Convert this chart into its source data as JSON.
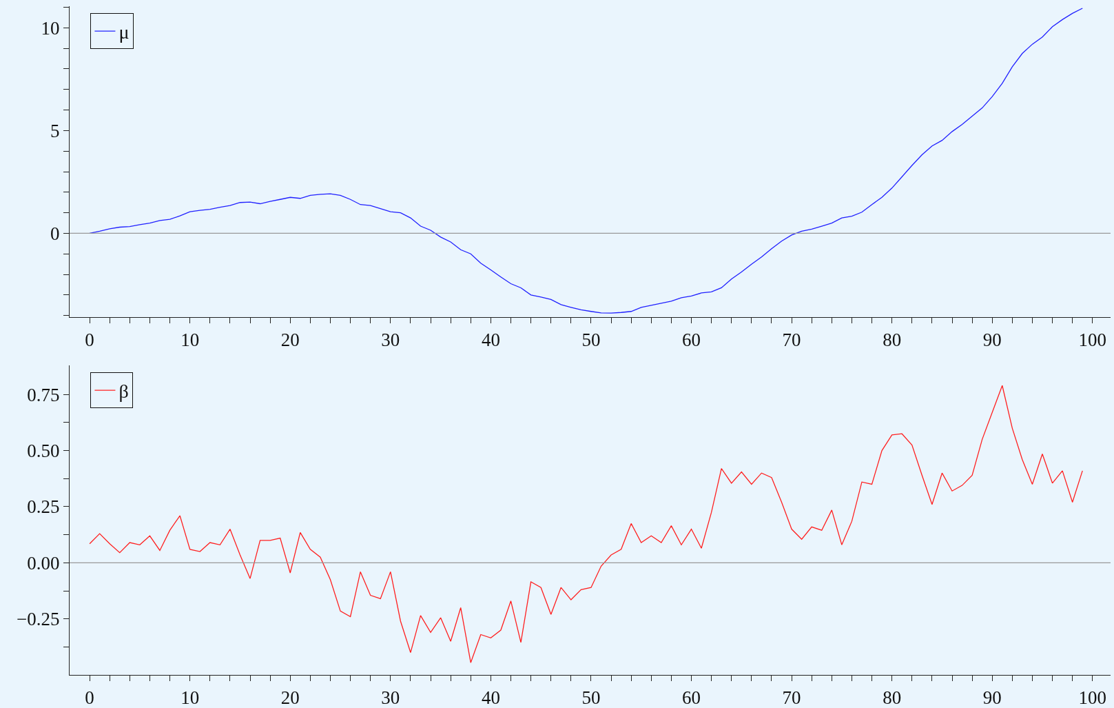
{
  "chart_data": [
    {
      "type": "line",
      "x": [
        0,
        1,
        2,
        3,
        4,
        5,
        6,
        7,
        8,
        9,
        10,
        11,
        12,
        13,
        14,
        15,
        16,
        17,
        18,
        19,
        20,
        21,
        22,
        23,
        24,
        25,
        26,
        27,
        28,
        29,
        30,
        31,
        32,
        33,
        34,
        35,
        36,
        37,
        38,
        39,
        40,
        41,
        42,
        43,
        44,
        45,
        46,
        47,
        48,
        49,
        50,
        51,
        52,
        53,
        54,
        55,
        56,
        57,
        58,
        59,
        60,
        61,
        62,
        63,
        64,
        65,
        66,
        67,
        68,
        69,
        70,
        71,
        72,
        73,
        74,
        75,
        76,
        77,
        78,
        79,
        80,
        81,
        82,
        83,
        84,
        85,
        86,
        87,
        88,
        89,
        90,
        91,
        92,
        93,
        94,
        95,
        96,
        97,
        98,
        99
      ],
      "series": [
        {
          "name": "μ",
          "color": "#2020ff",
          "values": [
            0,
            0.1,
            0.22,
            0.3,
            0.33,
            0.42,
            0.5,
            0.62,
            0.68,
            0.85,
            1.05,
            1.12,
            1.17,
            1.27,
            1.35,
            1.5,
            1.52,
            1.44,
            1.55,
            1.65,
            1.75,
            1.7,
            1.85,
            1.9,
            1.92,
            1.85,
            1.65,
            1.4,
            1.35,
            1.2,
            1.05,
            1.0,
            0.75,
            0.35,
            0.15,
            -0.18,
            -0.42,
            -0.8,
            -1.0,
            -1.45,
            -1.78,
            -2.12,
            -2.45,
            -2.65,
            -3.0,
            -3.1,
            -3.22,
            -3.47,
            -3.6,
            -3.72,
            -3.8,
            -3.87,
            -3.88,
            -3.85,
            -3.8,
            -3.6,
            -3.5,
            -3.4,
            -3.3,
            -3.13,
            -3.05,
            -2.9,
            -2.85,
            -2.65,
            -2.22,
            -1.88,
            -1.5,
            -1.15,
            -0.75,
            -0.38,
            -0.08,
            0.1,
            0.2,
            0.35,
            0.5,
            0.75,
            0.83,
            1.03,
            1.4,
            1.75,
            2.2,
            2.75,
            3.3,
            3.82,
            4.25,
            4.52,
            4.95,
            5.3,
            5.7,
            6.1,
            6.65,
            7.3,
            8.1,
            8.75,
            9.2,
            9.55,
            10.05,
            10.4,
            10.7,
            10.95
          ]
        }
      ],
      "xlim": [
        -2,
        101.8
      ],
      "ylim": [
        -4.08,
        11.05
      ],
      "xticks": [
        0,
        {
          "value": 2,
          "label": null
        },
        {
          "value": 4,
          "label": null
        },
        {
          "value": 6,
          "label": null
        },
        {
          "value": 8,
          "label": null
        },
        10,
        {
          "value": 12,
          "label": null
        },
        {
          "value": 14,
          "label": null
        },
        {
          "value": 16,
          "label": null
        },
        {
          "value": 18,
          "label": null
        },
        20,
        {
          "value": 22,
          "label": null
        },
        {
          "value": 24,
          "label": null
        },
        {
          "value": 26,
          "label": null
        },
        {
          "value": 28,
          "label": null
        },
        30,
        {
          "value": 32,
          "label": null
        },
        {
          "value": 34,
          "label": null
        },
        {
          "value": 36,
          "label": null
        },
        {
          "value": 38,
          "label": null
        },
        40,
        {
          "value": 42,
          "label": null
        },
        {
          "value": 44,
          "label": null
        },
        {
          "value": 46,
          "label": null
        },
        {
          "value": 48,
          "label": null
        },
        50,
        {
          "value": 52,
          "label": null
        },
        {
          "value": 54,
          "label": null
        },
        {
          "value": 56,
          "label": null
        },
        {
          "value": 58,
          "label": null
        },
        60,
        {
          "value": 62,
          "label": null
        },
        {
          "value": 64,
          "label": null
        },
        {
          "value": 66,
          "label": null
        },
        {
          "value": 68,
          "label": null
        },
        70,
        {
          "value": 72,
          "label": null
        },
        {
          "value": 74,
          "label": null
        },
        {
          "value": 76,
          "label": null
        },
        {
          "value": 78,
          "label": null
        },
        80,
        {
          "value": 82,
          "label": null
        },
        {
          "value": 84,
          "label": null
        },
        {
          "value": 86,
          "label": null
        },
        {
          "value": 88,
          "label": null
        },
        90,
        {
          "value": 92,
          "label": null
        },
        {
          "value": 94,
          "label": null
        },
        {
          "value": 96,
          "label": null
        },
        {
          "value": 98,
          "label": null
        },
        100
      ],
      "yticks": [
        {
          "value": -4,
          "label": null
        },
        {
          "value": -3,
          "label": null
        },
        {
          "value": -2,
          "label": null
        },
        {
          "value": -1,
          "label": null
        },
        0,
        {
          "value": 1,
          "label": null
        },
        {
          "value": 2,
          "label": null
        },
        {
          "value": 3,
          "label": null
        },
        {
          "value": 4,
          "label": null
        },
        5,
        {
          "value": 6,
          "label": null
        },
        {
          "value": 7,
          "label": null
        },
        {
          "value": 8,
          "label": null
        },
        {
          "value": 9,
          "label": null
        },
        10,
        {
          "value": 11,
          "label": null
        }
      ],
      "ref_lines": [
        {
          "axis": "y",
          "value": 0,
          "color": "#999999"
        }
      ],
      "legend": "top left",
      "grid": false,
      "marker": "none",
      "line_style": "solid"
    },
    {
      "type": "line",
      "x": [
        0,
        1,
        2,
        3,
        4,
        5,
        6,
        7,
        8,
        9,
        10,
        11,
        12,
        13,
        14,
        15,
        16,
        17,
        18,
        19,
        20,
        21,
        22,
        23,
        24,
        25,
        26,
        27,
        28,
        29,
        30,
        31,
        32,
        33,
        34,
        35,
        36,
        37,
        38,
        39,
        40,
        41,
        42,
        43,
        44,
        45,
        46,
        47,
        48,
        49,
        50,
        51,
        52,
        53,
        54,
        55,
        56,
        57,
        58,
        59,
        60,
        61,
        62,
        63,
        64,
        65,
        66,
        67,
        68,
        69,
        70,
        71,
        72,
        73,
        74,
        75,
        76,
        77,
        78,
        79,
        80,
        81,
        82,
        83,
        84,
        85,
        86,
        87,
        88,
        89,
        90,
        91,
        92,
        93,
        94,
        95,
        96,
        97,
        98,
        99
      ],
      "series": [
        {
          "name": "β",
          "color": "#ff2020",
          "values": [
            0.085,
            0.13,
            0.085,
            0.045,
            0.09,
            0.08,
            0.12,
            0.055,
            0.145,
            0.21,
            0.06,
            0.05,
            0.09,
            0.08,
            0.15,
            0.035,
            -0.07,
            0.1,
            0.1,
            0.11,
            -0.045,
            0.135,
            0.06,
            0.025,
            -0.075,
            -0.215,
            -0.24,
            -0.04,
            -0.145,
            -0.16,
            -0.04,
            -0.26,
            -0.4,
            -0.235,
            -0.31,
            -0.245,
            -0.35,
            -0.2,
            -0.445,
            -0.32,
            -0.335,
            -0.3,
            -0.17,
            -0.355,
            -0.085,
            -0.11,
            -0.23,
            -0.11,
            -0.165,
            -0.12,
            -0.11,
            -0.015,
            0.035,
            0.06,
            0.175,
            0.09,
            0.12,
            0.09,
            0.165,
            0.08,
            0.15,
            0.065,
            0.225,
            0.42,
            0.355,
            0.405,
            0.35,
            0.4,
            0.38,
            0.27,
            0.15,
            0.105,
            0.16,
            0.145,
            0.235,
            0.08,
            0.185,
            0.36,
            0.35,
            0.5,
            0.57,
            0.575,
            0.525,
            0.39,
            0.26,
            0.4,
            0.32,
            0.345,
            0.39,
            0.55,
            0.67,
            0.79,
            0.6,
            0.46,
            0.35,
            0.485,
            0.355,
            0.41,
            0.27,
            0.41
          ]
        }
      ],
      "xlim": [
        -2,
        101.8
      ],
      "ylim": [
        -0.5,
        0.88
      ],
      "xticks": [
        0,
        {
          "value": 2,
          "label": null
        },
        {
          "value": 4,
          "label": null
        },
        {
          "value": 6,
          "label": null
        },
        {
          "value": 8,
          "label": null
        },
        10,
        {
          "value": 12,
          "label": null
        },
        {
          "value": 14,
          "label": null
        },
        {
          "value": 16,
          "label": null
        },
        {
          "value": 18,
          "label": null
        },
        20,
        {
          "value": 22,
          "label": null
        },
        {
          "value": 24,
          "label": null
        },
        {
          "value": 26,
          "label": null
        },
        {
          "value": 28,
          "label": null
        },
        30,
        {
          "value": 32,
          "label": null
        },
        {
          "value": 34,
          "label": null
        },
        {
          "value": 36,
          "label": null
        },
        {
          "value": 38,
          "label": null
        },
        40,
        {
          "value": 42,
          "label": null
        },
        {
          "value": 44,
          "label": null
        },
        {
          "value": 46,
          "label": null
        },
        {
          "value": 48,
          "label": null
        },
        50,
        {
          "value": 52,
          "label": null
        },
        {
          "value": 54,
          "label": null
        },
        {
          "value": 56,
          "label": null
        },
        {
          "value": 58,
          "label": null
        },
        60,
        {
          "value": 62,
          "label": null
        },
        {
          "value": 64,
          "label": null
        },
        {
          "value": 66,
          "label": null
        },
        {
          "value": 68,
          "label": null
        },
        70,
        {
          "value": 72,
          "label": null
        },
        {
          "value": 74,
          "label": null
        },
        {
          "value": 76,
          "label": null
        },
        {
          "value": 78,
          "label": null
        },
        80,
        {
          "value": 82,
          "label": null
        },
        {
          "value": 84,
          "label": null
        },
        {
          "value": 86,
          "label": null
        },
        {
          "value": 88,
          "label": null
        },
        90,
        {
          "value": 92,
          "label": null
        },
        {
          "value": 94,
          "label": null
        },
        {
          "value": 96,
          "label": null
        },
        {
          "value": 98,
          "label": null
        },
        100
      ],
      "yticks": [
        {
          "value": -0.375,
          "label": null
        },
        {
          "value": -0.25,
          "label": "−0.25"
        },
        {
          "value": -0.125,
          "label": null
        },
        {
          "value": 0,
          "label": "0.00"
        },
        {
          "value": 0.125,
          "label": null
        },
        {
          "value": 0.25,
          "label": "0.25"
        },
        {
          "value": 0.375,
          "label": null
        },
        {
          "value": 0.5,
          "label": "0.50"
        },
        {
          "value": 0.625,
          "label": null
        },
        {
          "value": 0.75,
          "label": "0.75"
        }
      ],
      "ref_lines": [
        {
          "axis": "y",
          "value": 0,
          "color": "#999999"
        }
      ],
      "legend": "top left",
      "grid": false,
      "marker": "none",
      "line_style": "solid"
    }
  ]
}
